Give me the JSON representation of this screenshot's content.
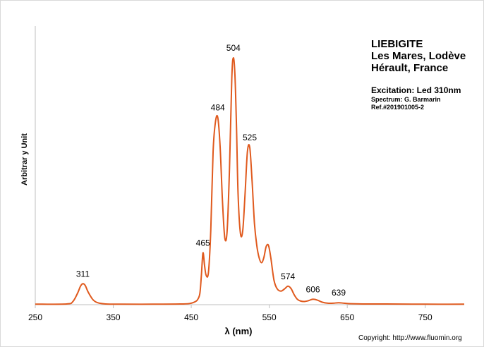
{
  "chart_data": {
    "type": "line",
    "title_lines": [
      "LIEBIGITE",
      "Les Mares, Lodève",
      "Hérault, France"
    ],
    "excitation": "Excitation:  Led 310nm",
    "spectrum_credit": "Spectrum: G. Barmarin",
    "reference": "Ref.#201901005-2",
    "xlabel": "λ (nm)",
    "ylabel": "Arbitrar y Unit",
    "xlim": [
      250,
      800
    ],
    "ylim": [
      0,
      1
    ],
    "xticks": [
      250,
      350,
      450,
      550,
      650,
      750
    ],
    "grid": false,
    "line_color": "#e05a1e",
    "series": [
      {
        "x": [
          250,
          290,
          298,
          304,
          308,
          311,
          314,
          318,
          324,
          330,
          340,
          360,
          400,
          440,
          450,
          455,
          458,
          461,
          463,
          465,
          467,
          469,
          472,
          475,
          478,
          481,
          484,
          487,
          490,
          493,
          496,
          499,
          502,
          504,
          506,
          508,
          510,
          513,
          516,
          519,
          522,
          525,
          528,
          531,
          534,
          537,
          540,
          543,
          546,
          549,
          552,
          556,
          560,
          565,
          570,
          574,
          578,
          582,
          586,
          590,
          595,
          600,
          606,
          612,
          618,
          625,
          632,
          639,
          646,
          655,
          670,
          700,
          750,
          800
        ],
        "y": [
          0.002,
          0.003,
          0.012,
          0.045,
          0.075,
          0.085,
          0.078,
          0.05,
          0.02,
          0.008,
          0.003,
          0.002,
          0.002,
          0.003,
          0.006,
          0.012,
          0.02,
          0.045,
          0.12,
          0.21,
          0.16,
          0.12,
          0.13,
          0.3,
          0.62,
          0.74,
          0.758,
          0.64,
          0.42,
          0.27,
          0.3,
          0.55,
          0.92,
          1.0,
          0.93,
          0.72,
          0.45,
          0.29,
          0.3,
          0.45,
          0.62,
          0.637,
          0.5,
          0.33,
          0.24,
          0.19,
          0.17,
          0.19,
          0.235,
          0.24,
          0.19,
          0.1,
          0.065,
          0.055,
          0.065,
          0.075,
          0.065,
          0.04,
          0.022,
          0.015,
          0.013,
          0.016,
          0.022,
          0.018,
          0.01,
          0.006,
          0.006,
          0.008,
          0.006,
          0.004,
          0.003,
          0.003,
          0.002,
          0.002
        ]
      }
    ],
    "annotations": [
      {
        "text": "311",
        "x": 311,
        "y": 0.085
      },
      {
        "text": "465",
        "x": 465,
        "y": 0.21
      },
      {
        "text": "484",
        "x": 484,
        "y": 0.758
      },
      {
        "text": "504",
        "x": 504,
        "y": 1.0
      },
      {
        "text": "525",
        "x": 525,
        "y": 0.637
      },
      {
        "text": "574",
        "x": 574,
        "y": 0.075
      },
      {
        "text": "606",
        "x": 606,
        "y": 0.022
      },
      {
        "text": "639",
        "x": 639,
        "y": 0.008
      }
    ]
  },
  "copyright": "Copyright: http://www.fluomin.org"
}
